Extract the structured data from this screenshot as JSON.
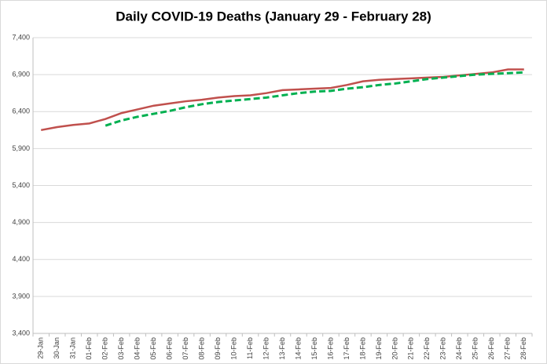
{
  "chart_data": {
    "type": "line",
    "title": "Daily COVID-19 Deaths (January 29 - February 28)",
    "categories": [
      "29-Jan",
      "30-Jan",
      "31-Jan",
      "01-Feb",
      "02-Feb",
      "03-Feb",
      "04-Feb",
      "05-Feb",
      "06-Feb",
      "07-Feb",
      "08-Feb",
      "09-Feb",
      "10-Feb",
      "11-Feb",
      "12-Feb",
      "13-Feb",
      "14-Feb",
      "15-Feb",
      "16-Feb",
      "17-Feb",
      "18-Feb",
      "19-Feb",
      "20-Feb",
      "21-Feb",
      "22-Feb",
      "23-Feb",
      "24-Feb",
      "25-Feb",
      "26-Feb",
      "27-Feb",
      "28-Feb"
    ],
    "series": [
      {
        "color": "#c0504d",
        "style": "solid",
        "values": [
          6150,
          6190,
          6220,
          6240,
          6300,
          6380,
          6430,
          6480,
          6510,
          6540,
          6560,
          6590,
          6610,
          6620,
          6650,
          6690,
          6700,
          6710,
          6720,
          6760,
          6810,
          6830,
          6840,
          6850,
          6860,
          6870,
          6890,
          6910,
          6930,
          6970,
          6970
        ]
      },
      {
        "color": "#00b050",
        "style": "dashed",
        "values": [
          null,
          null,
          null,
          null,
          6210,
          6280,
          6330,
          6370,
          6410,
          6460,
          6500,
          6530,
          6550,
          6570,
          6590,
          6620,
          6650,
          6670,
          6680,
          6710,
          6730,
          6760,
          6780,
          6810,
          6840,
          6860,
          6880,
          6900,
          6910,
          6920,
          6930
        ]
      }
    ],
    "ylim": [
      3400,
      7400
    ],
    "yticks": [
      {
        "value": 3400,
        "label": "3,400"
      },
      {
        "value": 3900,
        "label": "3,900"
      },
      {
        "value": 4400,
        "label": "4,400"
      },
      {
        "value": 4900,
        "label": "4,900"
      },
      {
        "value": 5400,
        "label": "5,400"
      },
      {
        "value": 5900,
        "label": "5,900"
      },
      {
        "value": 6400,
        "label": "6,400"
      },
      {
        "value": 6900,
        "label": "6,900"
      },
      {
        "value": 7400,
        "label": "7,400"
      }
    ],
    "grid": true
  }
}
